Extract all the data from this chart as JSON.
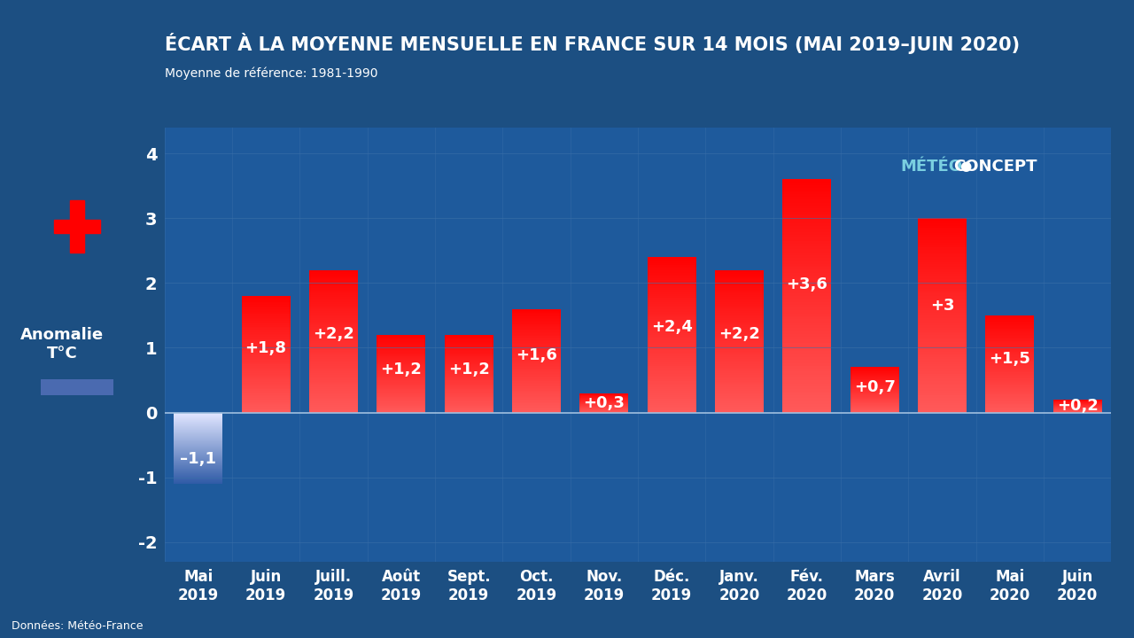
{
  "title": "ÉCART À LA MOYENNE MENSUELLE EN FRANCE SUR 14 MOIS (MAI 2019–JUIN 2020)",
  "subtitle": "Moyenne de référence: 1981-1990",
  "ylabel_line1": "Anomalie",
  "ylabel_line2": "T°C",
  "source": "Données: Météo-France",
  "categories": [
    "Mai\n2019",
    "Juin\n2019",
    "Juill.\n2019",
    "Août\n2019",
    "Sept.\n2019",
    "Oct.\n2019",
    "Nov.\n2019",
    "Déc.\n2019",
    "Janv.\n2020",
    "Fév.\n2020",
    "Mars\n2020",
    "Avril\n2020",
    "Mai\n2020",
    "Juin\n2020"
  ],
  "values": [
    -1.1,
    1.8,
    2.2,
    1.2,
    1.2,
    1.6,
    0.3,
    2.4,
    2.2,
    3.6,
    0.7,
    3.0,
    1.5,
    0.2
  ],
  "labels": [
    "–1,1",
    "+1,8",
    "+2,2",
    "+1,2",
    "+1,2",
    "+1,6",
    "+0,3",
    "+2,4",
    "+2,2",
    "+3,6",
    "+0,7",
    "+3",
    "+1,5",
    "+0,2"
  ],
  "ylim": [
    -2.3,
    4.4
  ],
  "yticks": [
    -2,
    -1,
    0,
    1,
    2,
    3,
    4
  ],
  "background_color": "#1c4f82",
  "plot_bg_color": "#1e5a9c",
  "grid_color": "#3a6fa8",
  "title_color": "#ffffff",
  "subtitle_color": "#ffffff",
  "tick_color": "#ffffff",
  "source_color": "#ffffff",
  "meteo_color": "#7acfe0",
  "concept_color": "#ffffff",
  "label_fontsize": 13,
  "title_fontsize": 15,
  "subtitle_fontsize": 10,
  "tick_fontsize": 12
}
